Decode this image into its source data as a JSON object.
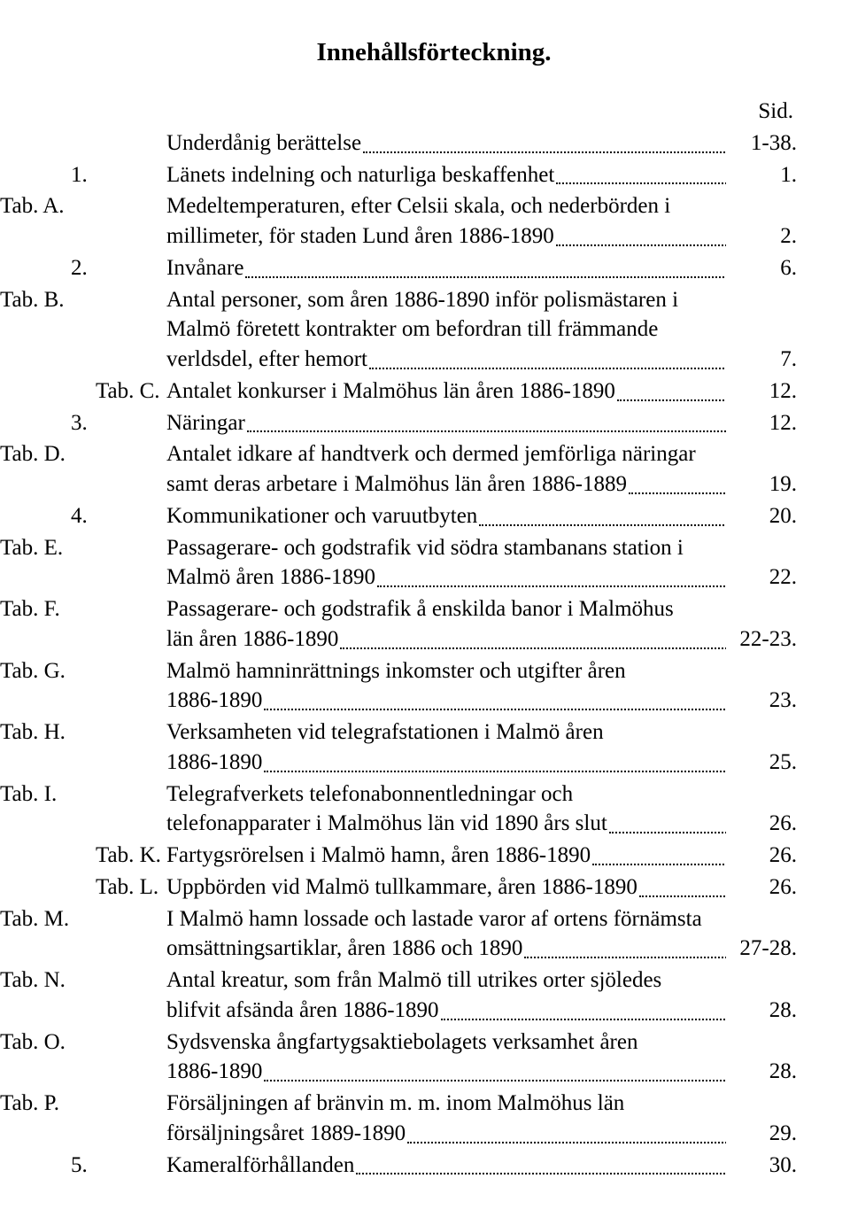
{
  "title": "Innehållsförteckning.",
  "sid_label": "Sid.",
  "entries": [
    {
      "num": "",
      "tab": "",
      "text": "Underdånig berättelse",
      "page": "1-38."
    },
    {
      "num": "1.",
      "tab": "",
      "text": "Länets indelning och naturliga beskaffenhet",
      "page": "1."
    },
    {
      "num": "",
      "tab": "Tab. A.",
      "text": "Medeltemperaturen, efter Celsii skala, och nederbörden i",
      "cont": "millimeter, för staden Lund åren 1886-1890",
      "page": "2."
    },
    {
      "num": "2.",
      "tab": "",
      "text": "Invånare",
      "page": "6."
    },
    {
      "num": "",
      "tab": "Tab. B.",
      "text": "Antal personer, som åren 1886-1890 inför polismästaren i",
      "cont": "Malmö företett kontrakter om befordran till främmande verldsdel, efter hemort",
      "page": "7."
    },
    {
      "num": "",
      "tab": "Tab. C.",
      "text": "Antalet konkurser i Malmöhus län åren 1886-1890",
      "page": "12."
    },
    {
      "num": "3.",
      "tab": "",
      "text": "Näringar",
      "page": "12."
    },
    {
      "num": "",
      "tab": "Tab. D.",
      "text": "Antalet idkare af handtverk och dermed jemförliga näringar",
      "cont": "samt deras arbetare i Malmöhus län åren 1886-1889",
      "page": "19."
    },
    {
      "num": "4.",
      "tab": "",
      "text": "Kommunikationer och varuutbyten",
      "page": "20."
    },
    {
      "num": "",
      "tab": "Tab. E.",
      "text": "Passagerare- och godstrafik vid södra stambanans station i",
      "cont": "Malmö åren 1886-1890",
      "page": "22."
    },
    {
      "num": "",
      "tab": "Tab. F.",
      "text": "Passagerare- och godstrafik å enskilda banor i Malmöhus",
      "cont": "län åren 1886-1890",
      "page": "22-23."
    },
    {
      "num": "",
      "tab": "Tab. G.",
      "text": "Malmö hamninrättnings inkomster och utgifter åren",
      "cont": "1886-1890",
      "page": "23."
    },
    {
      "num": "",
      "tab": "Tab. H.",
      "text": "Verksamheten vid telegrafstationen i Malmö åren",
      "cont": "1886-1890",
      "page": "25."
    },
    {
      "num": "",
      "tab": "Tab. I.",
      "text": "Telegrafverkets telefonabonnentledningar och",
      "cont": "telefonapparater i Malmöhus län vid 1890 års slut",
      "page": "26."
    },
    {
      "num": "",
      "tab": "Tab. K.",
      "text": "Fartygsrörelsen i Malmö hamn, åren 1886-1890",
      "page": "26."
    },
    {
      "num": "",
      "tab": "Tab. L.",
      "text": "Uppbörden vid Malmö tullkammare, åren 1886-1890",
      "page": "26."
    },
    {
      "num": "",
      "tab": "Tab. M.",
      "text": "I Malmö hamn lossade och lastade varor af ortens förnämsta",
      "cont": "omsättningsartiklar, åren 1886 och 1890",
      "page": "27-28."
    },
    {
      "num": "",
      "tab": "Tab. N.",
      "text": "Antal kreatur, som från Malmö till utrikes orter sjöledes",
      "cont": "blifvit afsända åren 1886-1890",
      "page": "28."
    },
    {
      "num": "",
      "tab": "Tab. O.",
      "text": "Sydsvenska ångfartygsaktiebolagets verksamhet åren",
      "cont": "1886-1890",
      "page": "28."
    },
    {
      "num": "",
      "tab": "Tab. P.",
      "text": "Försäljningen af bränvin m. m. inom Malmöhus län",
      "cont": "försäljningsåret 1889-1890",
      "page": "29."
    },
    {
      "num": "5.",
      "tab": "",
      "text": "Kameralförhållanden",
      "page": "30."
    }
  ]
}
